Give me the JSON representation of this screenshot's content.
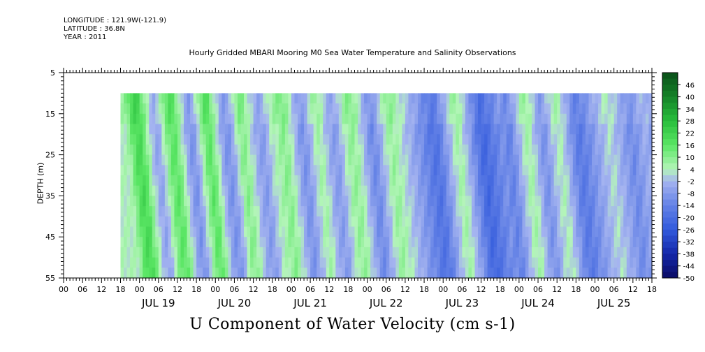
{
  "header": {
    "longitude": "LONGITUDE : 121.9W(-121.9)",
    "latitude": "LATITUDE : 36.8N",
    "year": "YEAR : 2011"
  },
  "chart_data": {
    "type": "heatmap",
    "title": "Hourly Gridded MBARI Mooring M0 Sea Water Temperature and Salinity Observations",
    "variable_label": "U Component of Water Velocity (cm s-1)",
    "ylabel": "DEPTH (m)",
    "ylim": [
      5,
      55
    ],
    "y_inverted": true,
    "y_ticks": [
      5,
      15,
      25,
      35,
      45,
      55
    ],
    "data_depth_range": [
      10,
      55
    ],
    "x_range_hours": [
      -18,
      168
    ],
    "data_x_start_hours": 0,
    "x_hour_ticks": [
      "00",
      "06",
      "12",
      "18",
      "00",
      "06",
      "12",
      "18",
      "00",
      "06",
      "12",
      "18",
      "00",
      "06",
      "12",
      "18",
      "00",
      "06",
      "12",
      "18",
      "00",
      "06",
      "12",
      "18",
      "00",
      "06",
      "12",
      "18",
      "00",
      "06",
      "12",
      "18"
    ],
    "x_day_labels": [
      "JUL 19",
      "JUL 20",
      "JUL 21",
      "JUL 22",
      "JUL 23",
      "JUL 24",
      "JUL 25"
    ],
    "colorbar": {
      "ticks": [
        "46",
        "40",
        "34",
        "28",
        "22",
        "16",
        "10",
        "4",
        "-2",
        "-8",
        "-14",
        "-20",
        "-26",
        "-32",
        "-38",
        "-44",
        "-50"
      ],
      "min": -50,
      "max": 52
    },
    "velocity_profile_hourly_cm_s": [
      4,
      8,
      14,
      18,
      20,
      18,
      12,
      6,
      0,
      -4,
      -6,
      -2,
      4,
      10,
      14,
      16,
      14,
      8,
      2,
      -4,
      -8,
      -10,
      -6,
      0,
      6,
      12,
      16,
      14,
      8,
      2,
      -4,
      -8,
      -10,
      -8,
      -4,
      2,
      8,
      10,
      8,
      4,
      0,
      -4,
      -6,
      -8,
      -6,
      -2,
      2,
      4,
      6,
      8,
      10,
      8,
      4,
      0,
      -4,
      -8,
      -10,
      -8,
      -4,
      0,
      4,
      6,
      4,
      0,
      -4,
      -6,
      -8,
      -6,
      -2,
      2,
      6,
      8,
      8,
      6,
      2,
      -2,
      -6,
      -10,
      -12,
      -10,
      -6,
      -2,
      2,
      6,
      8,
      6,
      4,
      2,
      0,
      -2,
      -4,
      -6,
      -8,
      -10,
      -12,
      -14,
      -16,
      -18,
      -18,
      -16,
      -12,
      -8,
      -4,
      0,
      4,
      6,
      4,
      0,
      -4,
      -8,
      -12,
      -16,
      -20,
      -22,
      -20,
      -18,
      -16,
      -14,
      -12,
      -10,
      -12,
      -14,
      -12,
      -8,
      -4,
      0,
      4,
      6,
      4,
      0,
      -4,
      -8,
      -10,
      -8,
      -4,
      0,
      2,
      4,
      2,
      -2,
      -6,
      -10,
      -14,
      -16,
      -16,
      -14,
      -12,
      -10,
      -8,
      -6,
      -4,
      -2,
      0,
      2,
      0,
      -2,
      -4,
      -6,
      -8,
      -10,
      -12,
      -10,
      -8,
      -6,
      -4,
      -4,
      -6,
      -8
    ],
    "depth_structure": "Near-surface (10 m) values slightly more positive; alternating green (eastward, positive) and blue (westward, negative) bands that tilt with depth; strongest positive (~+16 to +20) around JUL 19 06-12h at 25-35 m; strongest negative (~-20) during JUL 23-25 at mid-to-deep levels."
  }
}
